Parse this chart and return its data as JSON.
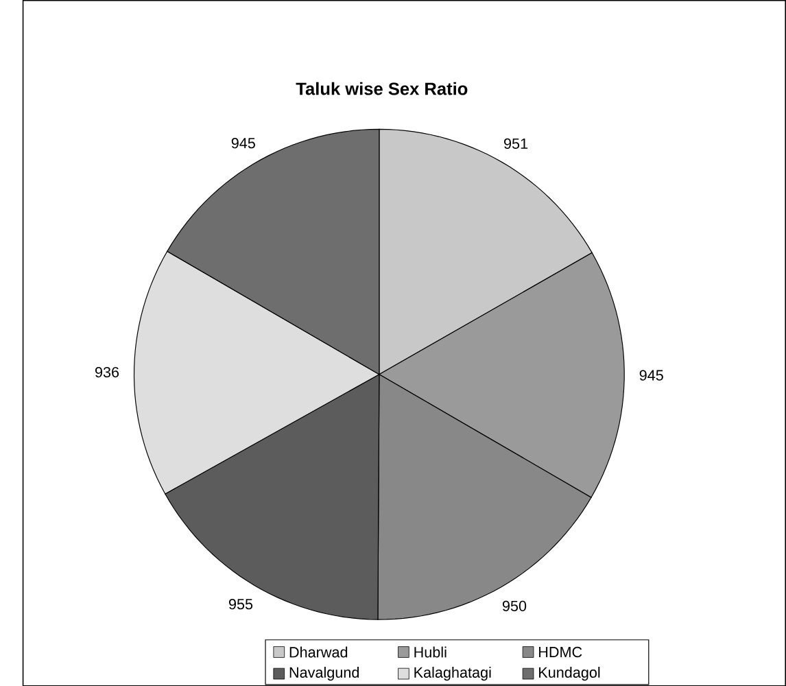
{
  "chart_data": {
    "type": "pie",
    "title": "Taluk wise Sex Ratio",
    "categories": [
      "Dharwad",
      "Hubli",
      "HDMC",
      "Navalgund",
      "Kalaghatagi",
      "Kundagol"
    ],
    "values": [
      951,
      945,
      950,
      955,
      936,
      945
    ],
    "colors": [
      "#c8c8c8",
      "#9a9a9a",
      "#888888",
      "#5c5c5c",
      "#dedede",
      "#6e6e6e"
    ],
    "data_labels": true,
    "legend": "bottom"
  }
}
